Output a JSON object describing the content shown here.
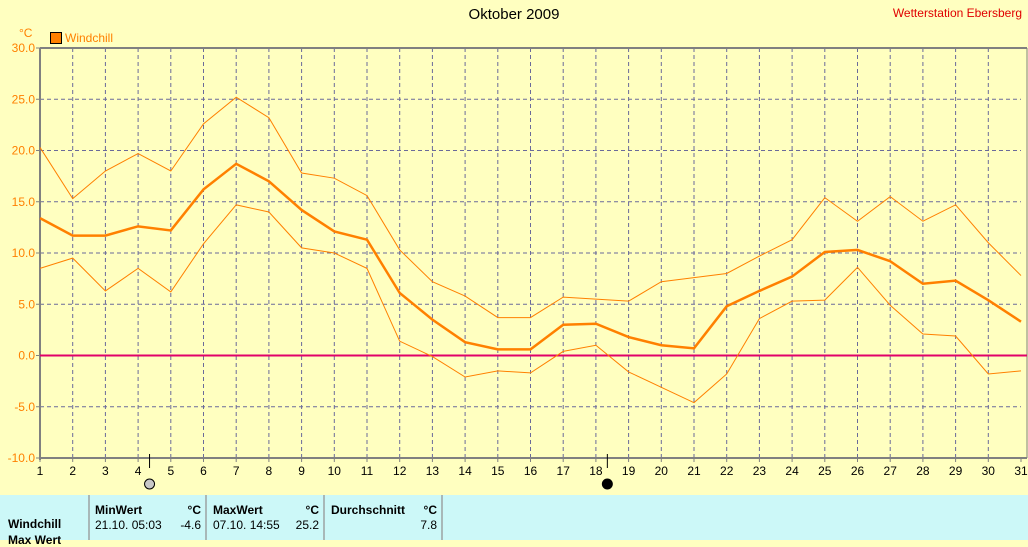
{
  "header": {
    "title": "Oktober 2009",
    "station": "Wetterstation Ebersberg",
    "unit": "°C"
  },
  "chart_data": {
    "type": "line",
    "title": "Oktober 2009",
    "ylabel": "°C",
    "xlabel": "",
    "x": [
      1,
      2,
      3,
      4,
      5,
      6,
      7,
      8,
      9,
      10,
      11,
      12,
      13,
      14,
      15,
      16,
      17,
      18,
      19,
      20,
      21,
      22,
      23,
      24,
      25,
      26,
      27,
      28,
      29,
      30,
      31
    ],
    "ylim": [
      -10,
      30
    ],
    "xlim": [
      1,
      31
    ],
    "yticks": [
      "30.0",
      "25.0",
      "20.0",
      "15.0",
      "10.0",
      "5.0",
      "0.0",
      "-5.0",
      "-10.0"
    ],
    "grid": true,
    "legend": {
      "label": "Windchill",
      "position": "top-left",
      "color": "#ff8000"
    },
    "series": [
      {
        "name": "Windchill Mittel",
        "color": "#ff8000",
        "width": "thick",
        "values": [
          13.4,
          11.7,
          11.7,
          12.6,
          12.2,
          16.2,
          18.7,
          17.0,
          14.2,
          12.1,
          11.3,
          6.1,
          3.5,
          1.3,
          0.6,
          0.6,
          3.0,
          3.1,
          1.8,
          1.0,
          0.7,
          4.8,
          6.3,
          7.7,
          10.1,
          10.3,
          9.2,
          7.0,
          7.3,
          5.4,
          3.3
        ]
      },
      {
        "name": "Windchill Max",
        "color": "#ff8000",
        "width": "thin",
        "values": [
          20.3,
          15.3,
          18.0,
          19.7,
          18.0,
          22.6,
          25.2,
          23.2,
          17.8,
          17.3,
          15.6,
          10.3,
          7.2,
          5.8,
          3.7,
          3.7,
          5.7,
          5.5,
          5.3,
          7.2,
          7.6,
          8.0,
          9.7,
          11.3,
          15.4,
          13.1,
          15.5,
          13.1,
          14.7,
          11.0,
          7.8
        ]
      },
      {
        "name": "Windchill Min",
        "color": "#ff8000",
        "width": "thin",
        "values": [
          8.5,
          9.5,
          6.3,
          8.5,
          6.2,
          10.9,
          14.7,
          14.0,
          10.5,
          10.0,
          8.5,
          1.4,
          -0.1,
          -2.1,
          -1.5,
          -1.7,
          0.4,
          1.0,
          -1.6,
          -3.1,
          -4.6,
          -1.8,
          3.6,
          5.3,
          5.4,
          8.6,
          4.9,
          2.1,
          1.9,
          -1.8,
          -1.5
        ]
      }
    ],
    "zero_line_color": "#e0006a",
    "moon_phases": [
      {
        "day": 4.35,
        "phase": "full-moon"
      },
      {
        "day": 18.35,
        "phase": "new-moon"
      }
    ]
  },
  "summary": {
    "row_label": "Windchill",
    "row2_label": "Max Wert",
    "min_header": "MinWert",
    "min_unit": "°C",
    "min_date": "21.10.  05:03",
    "min_value": "-4.6",
    "max_header": "MaxWert",
    "max_unit": "°C",
    "max_date": "07.10.  14:55",
    "max_value": "25.2",
    "avg_header": "Durchschnitt",
    "avg_unit": "°C",
    "avg_value": "7.8"
  }
}
